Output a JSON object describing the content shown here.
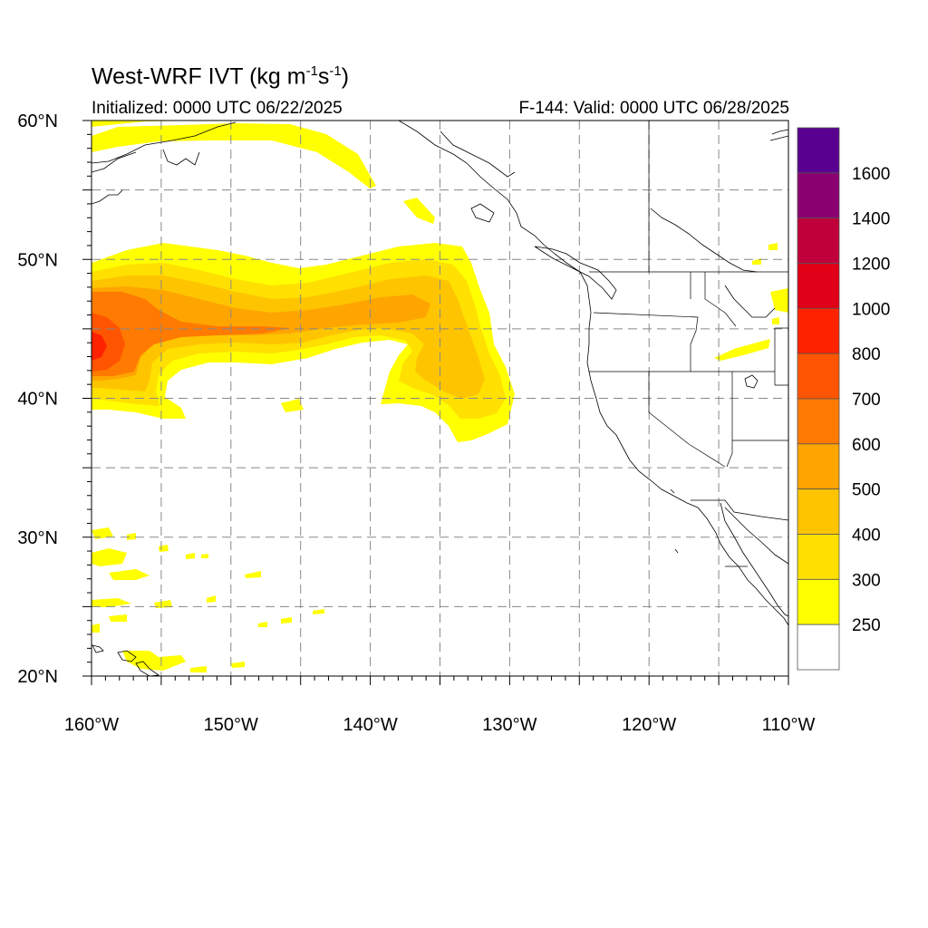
{
  "header": {
    "title_main": "West-WRF IVT (kg m",
    "title_sup1": "-1",
    "title_mid": "s",
    "title_sup2": "-1",
    "title_end": ")",
    "initialized": "Initialized: 0000 UTC 06/22/2025",
    "valid": "F-144: Valid: 0000 UTC 06/28/2025"
  },
  "axes": {
    "lat_labels": [
      "60°N",
      "50°N",
      "40°N",
      "30°N",
      "20°N"
    ],
    "lon_labels": [
      "160°W",
      "150°W",
      "140°W",
      "130°W",
      "120°W",
      "110°W"
    ],
    "lat_range": [
      20,
      60
    ],
    "lon_range": [
      -160,
      -110
    ],
    "grid": "dashed, every 5°"
  },
  "colorbar": {
    "labels": [
      "1600",
      "1400",
      "1200",
      "1000",
      "800",
      "700",
      "600",
      "500",
      "400",
      "300",
      "250"
    ],
    "colors": [
      "#5a0090",
      "#8a0070",
      "#c0003a",
      "#e00018",
      "#ff2200",
      "#ff5500",
      "#ff7a00",
      "#ffa500",
      "#ffc400",
      "#ffe000",
      "#ffff00",
      "#ffffff"
    ]
  },
  "ivt_colors": {
    "250": "#ffff00",
    "300": "#ffe000",
    "400": "#ffc400",
    "500": "#ffa500",
    "600": "#ff7a00",
    "700": "#ff5500",
    "800": "#ff2200"
  }
}
